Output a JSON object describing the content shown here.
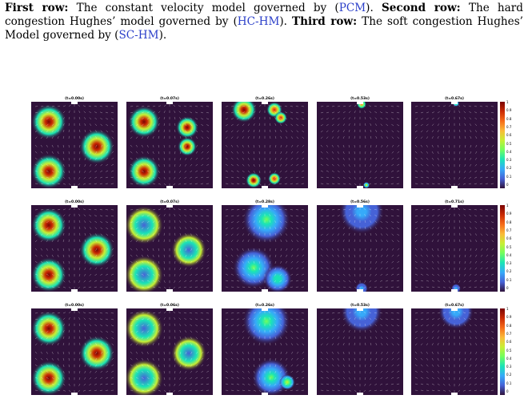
{
  "caption": {
    "row1_label": "First row:",
    "row1_text": " The constant velocity model governed by (",
    "row1_ref": "PCM",
    "row1_end": ").",
    "row2_label": "Second row:",
    "row2_text": " The hard congestion Hughes’ model governed by (",
    "row2_ref": "HC-HM",
    "row2_end": ").",
    "row3_label": "Third row:",
    "row3_text": " The soft congestion Hughes’ Model governed by (",
    "row3_ref": "SC-HM",
    "row3_end": ")."
  },
  "panels": [
    [
      "(t=0.00s)",
      "(t=0.07s)",
      "(t=0.26s)",
      "(t=0.53s)",
      "(t=0.67s)"
    ],
    [
      "(t=0.00s)",
      "(t=0.07s)",
      "(t=0.28s)",
      "(t=0.56s)",
      "(t=0.71s)"
    ],
    [
      "(t=0.00s)",
      "(t=0.06s)",
      "(t=0.26s)",
      "(t=0.53s)",
      "(t=0.67s)"
    ]
  ],
  "colorbar_ticks": [
    "1",
    "0.9",
    "0.8",
    "0.7",
    "0.6",
    "0.5",
    "0.4",
    "0.3",
    "0.2",
    "0.1",
    "0"
  ],
  "colors": {
    "background": "#30123b",
    "colormap": [
      "#30123b",
      "#4662d7",
      "#36aaf9",
      "#1ae4b6",
      "#72fe5e",
      "#c8ef34",
      "#faba39",
      "#f66b19",
      "#ca2a04",
      "#7a0403"
    ],
    "arrow": "#ffffff",
    "link": "#2b3fc9"
  }
}
